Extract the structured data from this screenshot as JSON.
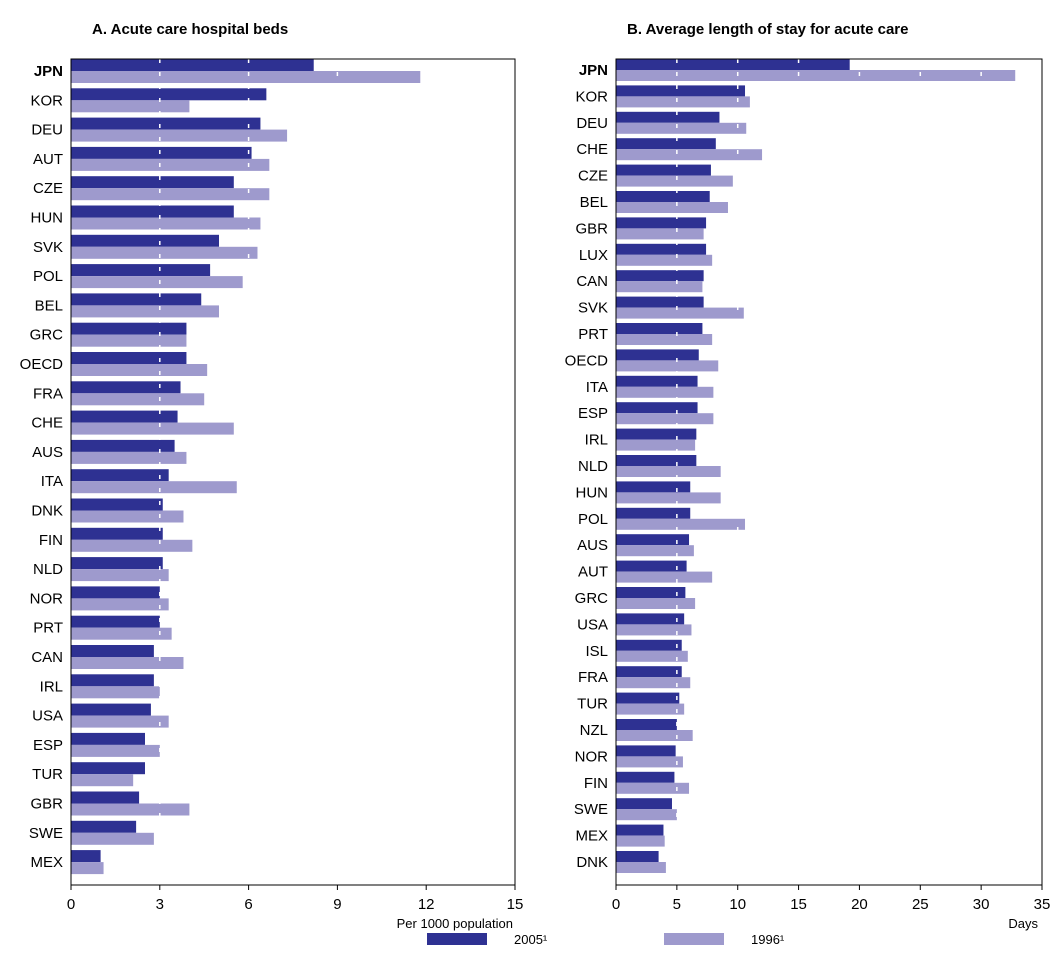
{
  "colors": {
    "s2005": "#2e3192",
    "s1996": "#9e9acd",
    "frame": "#000000",
    "grid": "#ffffff"
  },
  "legend": {
    "s2005_label": "2005¹",
    "s1996_label": "1996¹"
  },
  "chart_data": [
    {
      "type": "bar",
      "orientation": "horizontal",
      "title": "A. Acute care hospital beds",
      "xlabel": "Per 1000 population",
      "xlim": [
        0,
        15
      ],
      "xticks": [
        0,
        3,
        6,
        9,
        12,
        15
      ],
      "grid": true,
      "highlight": "JPN",
      "categories": [
        "JPN",
        "KOR",
        "DEU",
        "AUT",
        "CZE",
        "HUN",
        "SVK",
        "POL",
        "BEL",
        "GRC",
        "OECD",
        "FRA",
        "CHE",
        "AUS",
        "ITA",
        "DNK",
        "FIN",
        "NLD",
        "NOR",
        "PRT",
        "CAN",
        "IRL",
        "USA",
        "ESP",
        "TUR",
        "GBR",
        "SWE",
        "MEX"
      ],
      "series": [
        {
          "name": "2005¹",
          "values": [
            8.2,
            6.6,
            6.4,
            6.1,
            5.5,
            5.5,
            5.0,
            4.7,
            4.4,
            3.9,
            3.9,
            3.7,
            3.6,
            3.5,
            3.3,
            3.1,
            3.1,
            3.1,
            3.0,
            3.0,
            2.8,
            2.8,
            2.7,
            2.5,
            2.5,
            2.3,
            2.2,
            1.0
          ]
        },
        {
          "name": "1996¹",
          "values": [
            11.8,
            4.0,
            7.3,
            6.7,
            6.7,
            6.4,
            6.3,
            5.8,
            5.0,
            3.9,
            4.6,
            4.5,
            5.5,
            3.9,
            5.6,
            3.8,
            4.1,
            3.3,
            3.3,
            3.4,
            3.8,
            3.0,
            3.3,
            3.0,
            2.1,
            4.0,
            2.8,
            1.1
          ]
        }
      ]
    },
    {
      "type": "bar",
      "orientation": "horizontal",
      "title": "B. Average length of stay for acute care",
      "xlabel": "Days",
      "xlim": [
        0,
        35
      ],
      "xticks": [
        0,
        5,
        10,
        15,
        20,
        25,
        30,
        35
      ],
      "grid": true,
      "highlight": "JPN",
      "categories": [
        "JPN",
        "KOR",
        "DEU",
        "CHE",
        "CZE",
        "BEL",
        "GBR",
        "LUX",
        "CAN",
        "SVK",
        "PRT",
        "OECD",
        "ITA",
        "ESP",
        "IRL",
        "NLD",
        "HUN",
        "POL",
        "AUS",
        "AUT",
        "GRC",
        "USA",
        "ISL",
        "FRA",
        "TUR",
        "NZL",
        "NOR",
        "FIN",
        "SWE",
        "MEX",
        "DNK"
      ],
      "series": [
        {
          "name": "2005¹",
          "values": [
            19.2,
            10.6,
            8.5,
            8.2,
            7.8,
            7.7,
            7.4,
            7.4,
            7.2,
            7.2,
            7.1,
            6.8,
            6.7,
            6.7,
            6.6,
            6.6,
            6.1,
            6.1,
            6.0,
            5.8,
            5.7,
            5.6,
            5.4,
            5.4,
            5.2,
            5.0,
            4.9,
            4.8,
            4.6,
            3.9,
            3.5
          ]
        },
        {
          "name": "1996¹",
          "values": [
            32.8,
            11.0,
            10.7,
            12.0,
            9.6,
            9.2,
            7.2,
            7.9,
            7.1,
            10.5,
            7.9,
            8.4,
            8.0,
            8.0,
            6.5,
            8.6,
            8.6,
            10.6,
            6.4,
            7.9,
            6.5,
            6.2,
            5.9,
            6.1,
            5.6,
            6.3,
            5.5,
            6.0,
            5.0,
            4.0,
            4.1
          ]
        }
      ]
    }
  ]
}
